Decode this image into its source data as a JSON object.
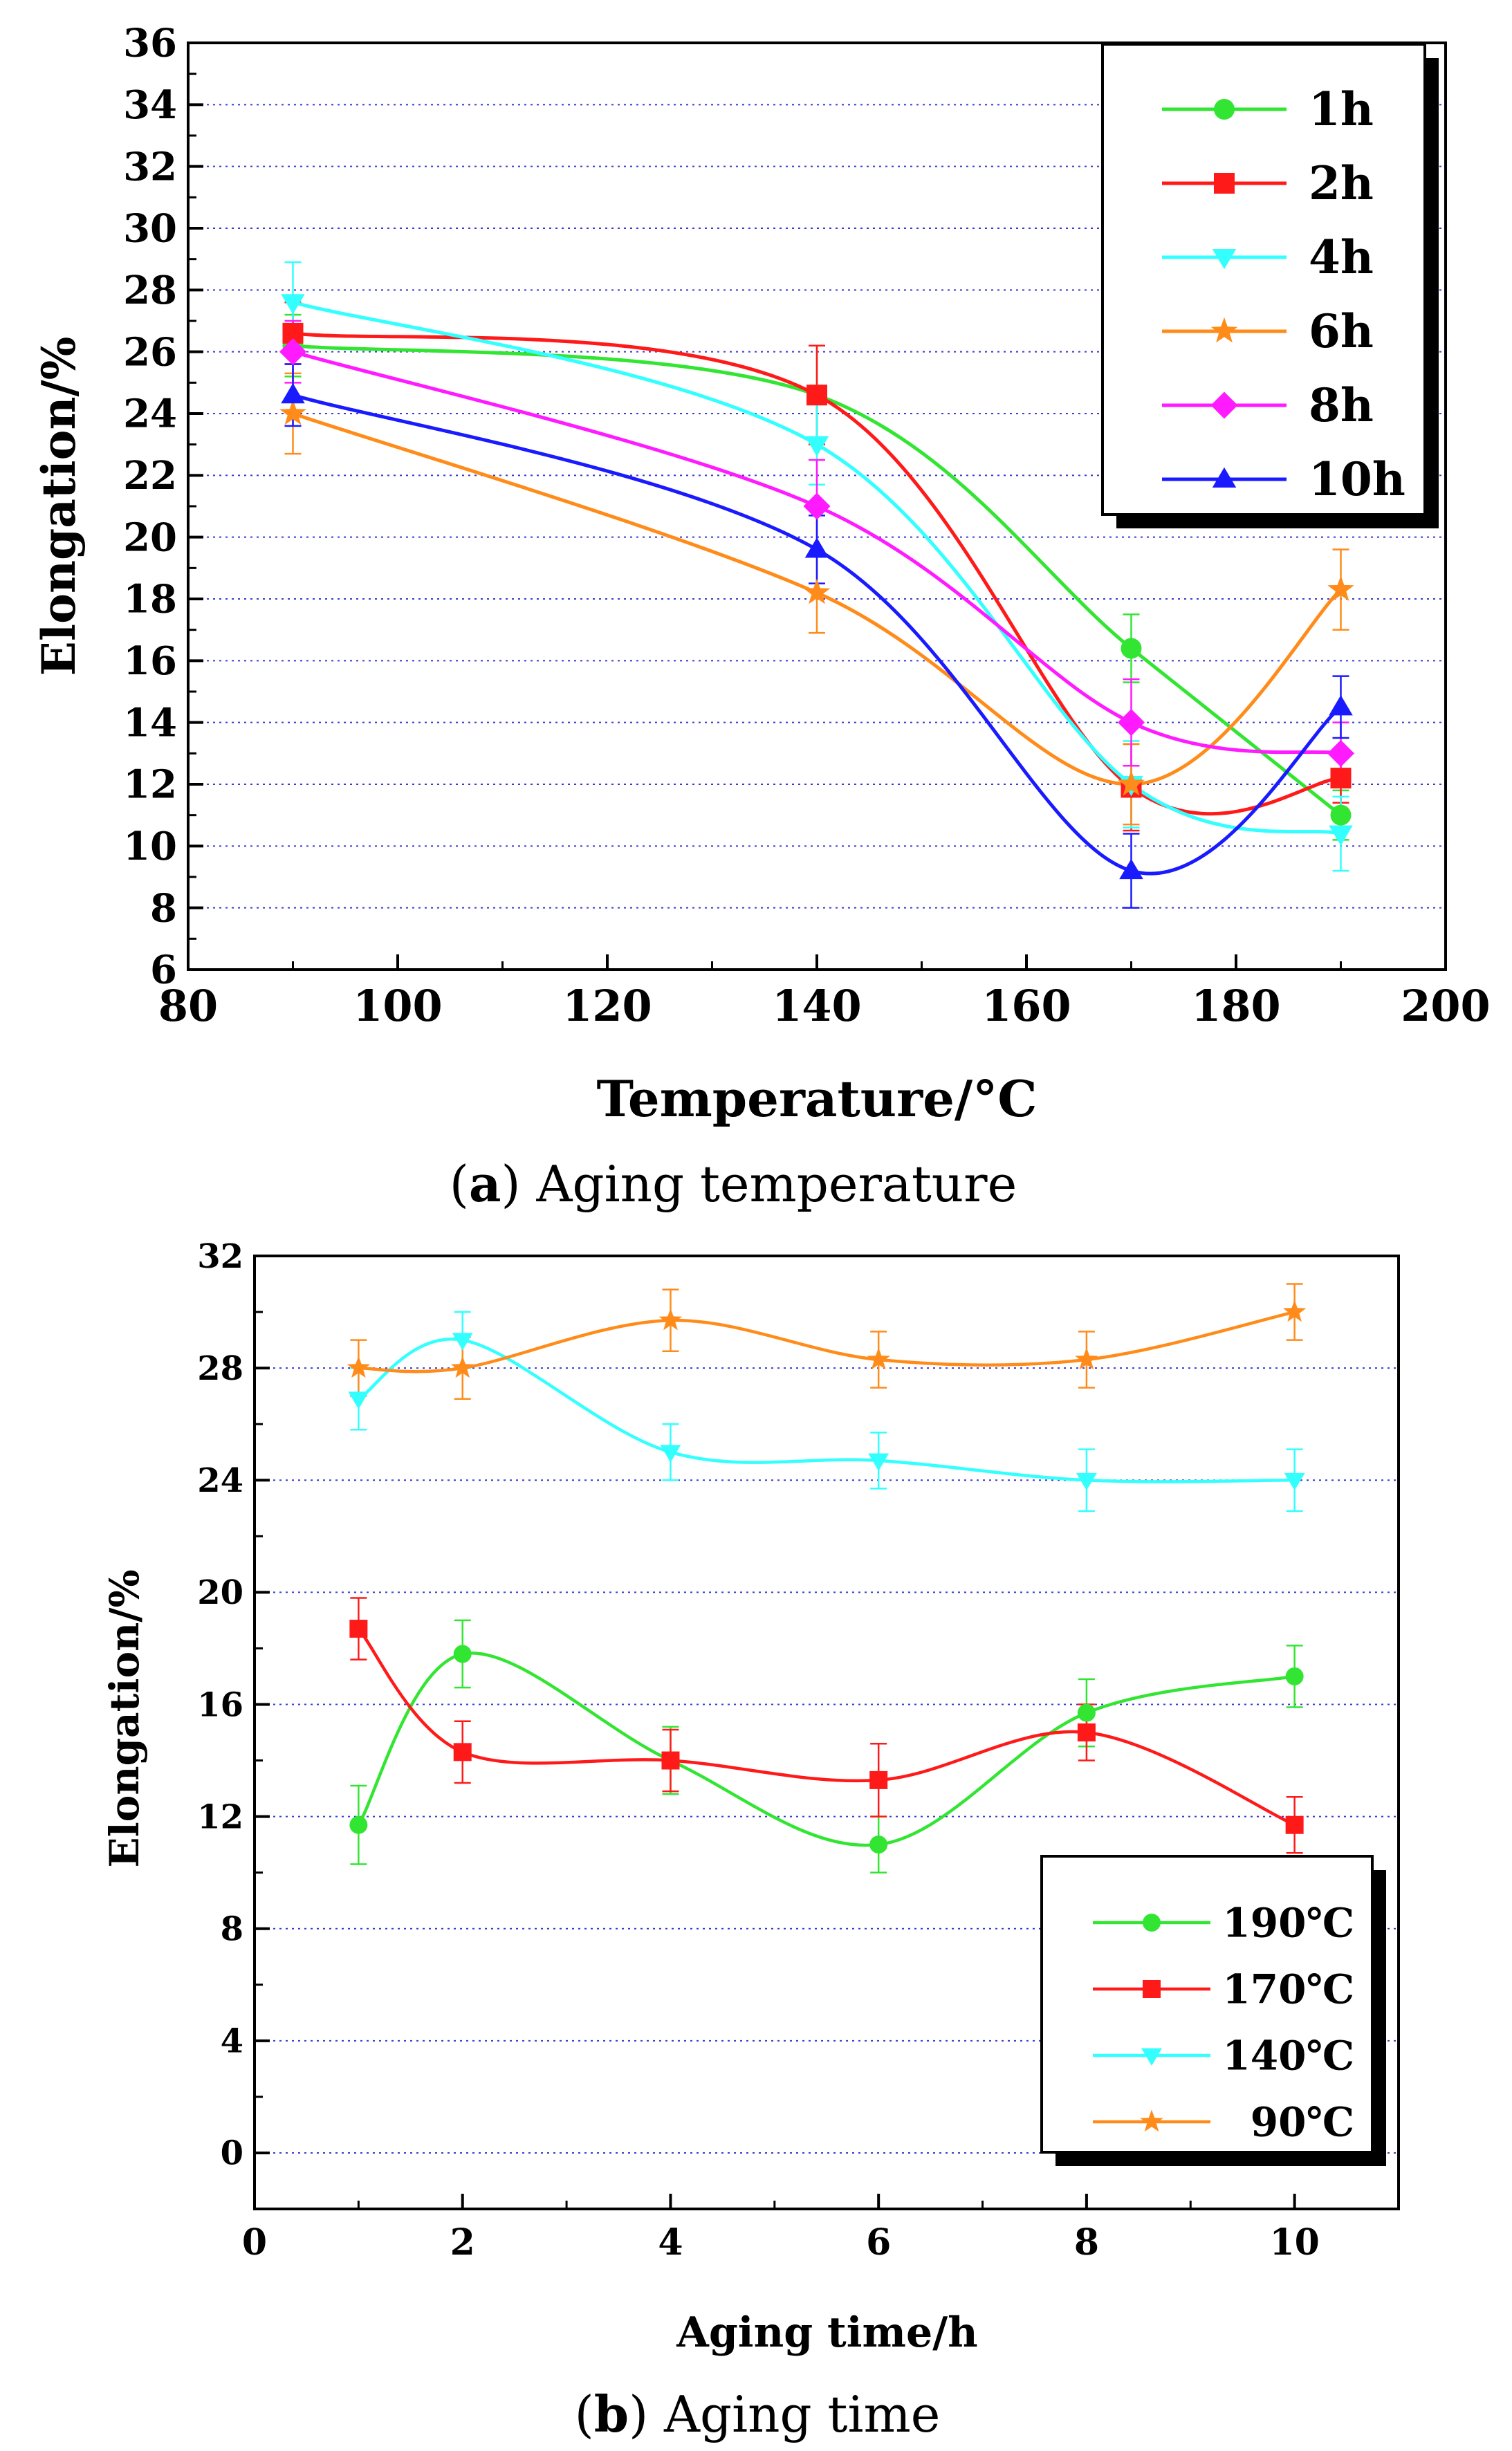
{
  "chart_data": [
    {
      "type": "line",
      "title": "",
      "caption_letter": "a",
      "caption_text": "Aging temperature",
      "xlabel": "Temperature/°C",
      "ylabel": "Elongation/%",
      "xlim": [
        80,
        200
      ],
      "ylim": [
        6,
        36
      ],
      "xticks": [
        80,
        100,
        120,
        140,
        160,
        180,
        200
      ],
      "yticks": [
        6,
        8,
        10,
        12,
        14,
        16,
        18,
        20,
        22,
        24,
        26,
        28,
        30,
        32,
        34,
        36
      ],
      "grid": "horizontal dotted",
      "legend_position": "top-right",
      "x": [
        90,
        140,
        170,
        190
      ],
      "series": [
        {
          "name": "1h",
          "marker": "circle",
          "color": "#33e533",
          "values": [
            26.2,
            24.6,
            16.4,
            11.0
          ],
          "errors": [
            1.0,
            1.6,
            1.1,
            0.8
          ]
        },
        {
          "name": "2h",
          "marker": "square",
          "color": "#ff1a1a",
          "values": [
            26.6,
            24.6,
            11.9,
            12.2
          ],
          "errors": [
            1.0,
            1.6,
            1.4,
            0.8
          ]
        },
        {
          "name": "4h",
          "marker": "triangle-down",
          "color": "#33ffff",
          "values": [
            27.6,
            23.0,
            12.0,
            10.4
          ],
          "errors": [
            1.3,
            1.3,
            1.4,
            1.2
          ]
        },
        {
          "name": "6h",
          "marker": "star",
          "color": "#ff8c1a",
          "values": [
            24.0,
            18.2,
            12.0,
            18.3
          ],
          "errors": [
            1.3,
            1.3,
            1.3,
            1.3
          ]
        },
        {
          "name": "8h",
          "marker": "diamond",
          "color": "#ff1aff",
          "values": [
            26.0,
            21.0,
            14.0,
            13.0
          ],
          "errors": [
            1.0,
            1.5,
            1.4,
            1.0
          ]
        },
        {
          "name": "10h",
          "marker": "triangle-up",
          "color": "#1a1aff",
          "values": [
            24.6,
            19.6,
            9.2,
            14.5
          ],
          "errors": [
            1.0,
            1.1,
            1.2,
            1.0
          ]
        }
      ]
    },
    {
      "type": "line",
      "title": "",
      "caption_letter": "b",
      "caption_text": "Aging time",
      "xlabel": "Aging time/h",
      "ylabel": "Elongation/%",
      "xlim": [
        0,
        11
      ],
      "ylim": [
        -2,
        32
      ],
      "xticks": [
        0,
        2,
        4,
        6,
        8,
        10
      ],
      "yticks": [
        0,
        4,
        8,
        12,
        16,
        20,
        24,
        28,
        32
      ],
      "grid": "horizontal dotted",
      "legend_position": "bottom-right",
      "x": [
        1,
        2,
        4,
        6,
        8,
        10
      ],
      "series": [
        {
          "name": "190℃",
          "marker": "circle",
          "color": "#33e533",
          "values": [
            11.7,
            17.8,
            14.0,
            11.0,
            15.7,
            17.0
          ],
          "errors": [
            1.4,
            1.2,
            1.2,
            1.0,
            1.2,
            1.1
          ]
        },
        {
          "name": "170℃",
          "marker": "square",
          "color": "#ff1a1a",
          "values": [
            18.7,
            14.3,
            14.0,
            13.3,
            15.0,
            11.7
          ],
          "errors": [
            1.1,
            1.1,
            1.1,
            1.3,
            1.0,
            1.0
          ]
        },
        {
          "name": "140℃",
          "marker": "triangle-down",
          "color": "#33ffff",
          "values": [
            26.9,
            29.0,
            25.0,
            24.7,
            24.0,
            24.0
          ],
          "errors": [
            1.1,
            1.0,
            1.0,
            1.0,
            1.1,
            1.1
          ]
        },
        {
          "name": "90℃",
          "marker": "star",
          "color": "#ff8c1a",
          "values": [
            28.0,
            28.0,
            29.7,
            28.3,
            28.3,
            30.0
          ],
          "errors": [
            1.0,
            1.1,
            1.1,
            1.0,
            1.0,
            1.0
          ]
        }
      ]
    }
  ]
}
